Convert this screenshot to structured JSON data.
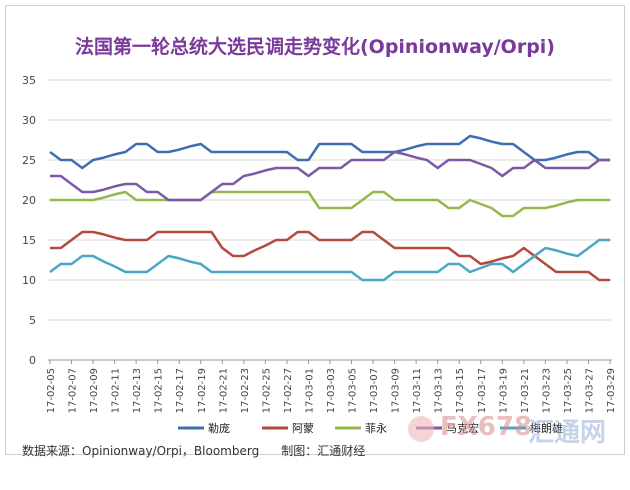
{
  "title": "法国第一轮总统大选民调走势变化(Opinionway/Orpi)",
  "footer": {
    "source": "数据来源：Opinionway/Orpi，Bloomberg",
    "maker": "制图：汇通财经"
  },
  "watermark": {
    "text1": "FX678",
    "text2": "汇通网"
  },
  "chart_data": {
    "type": "line",
    "title": "法国第一轮总统大选民调走势变化(Opinionway/Orpi)",
    "ylim": [
      0,
      35
    ],
    "yticks": [
      0,
      5,
      10,
      15,
      20,
      25,
      30,
      35
    ],
    "grid": true,
    "legend_position": "bottom",
    "x": [
      "17-02-05",
      "17-02-06",
      "17-02-07",
      "17-02-08",
      "17-02-09",
      "17-02-10",
      "17-02-11",
      "17-02-12",
      "17-02-13",
      "17-02-14",
      "17-02-15",
      "17-02-16",
      "17-02-17",
      "17-02-18",
      "17-02-19",
      "17-02-20",
      "17-02-21",
      "17-02-22",
      "17-02-23",
      "17-02-24",
      "17-02-25",
      "17-02-26",
      "17-02-27",
      "17-02-28",
      "17-03-01",
      "17-03-02",
      "17-03-03",
      "17-03-04",
      "17-03-05",
      "17-03-06",
      "17-03-07",
      "17-03-08",
      "17-03-09",
      "17-03-10",
      "17-03-11",
      "17-03-12",
      "17-03-13",
      "17-03-14",
      "17-03-15",
      "17-03-16",
      "17-03-17",
      "17-03-18",
      "17-03-19",
      "17-03-20",
      "17-03-21",
      "17-03-22",
      "17-03-23",
      "17-03-24",
      "17-03-25",
      "17-03-26",
      "17-03-27",
      "17-03-28",
      "17-03-29"
    ],
    "xtick_labels": [
      "17-02-05",
      "17-02-07",
      "17-02-09",
      "17-02-11",
      "17-02-13",
      "17-02-15",
      "17-02-17",
      "17-02-19",
      "17-02-21",
      "17-02-23",
      "17-02-25",
      "17-02-27",
      "17-03-01",
      "17-03-03",
      "17-03-05",
      "17-03-07",
      "17-03-09",
      "17-03-11",
      "17-03-13",
      "17-03-15",
      "17-03-17",
      "17-03-19",
      "17-03-21",
      "17-03-23",
      "17-03-25",
      "17-03-27",
      "17-03-29"
    ],
    "series": [
      {
        "name": "勒庞",
        "color": "#3d6fb0",
        "values": [
          26,
          25,
          25,
          24,
          25,
          25.3,
          25.7,
          26,
          27,
          27,
          26,
          26,
          26.3,
          26.7,
          27,
          26,
          26,
          26,
          26,
          26,
          26,
          26,
          26,
          25,
          25,
          27,
          27,
          27,
          27,
          26,
          26,
          26,
          26,
          26.3,
          26.7,
          27,
          27,
          27,
          27,
          28,
          27.7,
          27.3,
          27,
          27,
          26,
          25,
          25,
          25.3,
          25.7,
          26,
          26,
          25,
          25
        ]
      },
      {
        "name": "阿蒙",
        "color": "#b34a3c",
        "values": [
          14,
          14,
          15,
          16,
          16,
          15.7,
          15.3,
          15,
          15,
          15,
          16,
          16,
          16,
          16,
          16,
          16,
          14,
          13,
          13,
          13.7,
          14.3,
          15,
          15,
          16,
          16,
          15,
          15,
          15,
          15,
          16,
          16,
          15,
          14,
          14,
          14,
          14,
          14,
          14,
          13,
          13,
          12,
          12.3,
          12.7,
          13,
          14,
          13,
          12,
          11,
          11,
          11,
          11,
          10,
          10
        ]
      },
      {
        "name": "菲永",
        "color": "#95b84a",
        "values": [
          20,
          20,
          20,
          20,
          20,
          20.3,
          20.7,
          21,
          20,
          20,
          20,
          20,
          20,
          20,
          20,
          21,
          21,
          21,
          21,
          21,
          21,
          21,
          21,
          21,
          21,
          19,
          19,
          19,
          19,
          20,
          21,
          21,
          20,
          20,
          20,
          20,
          20,
          19,
          19,
          20,
          19.5,
          19,
          18,
          18,
          19,
          19,
          19,
          19.3,
          19.7,
          20,
          20,
          20,
          20
        ]
      },
      {
        "name": "马克宏",
        "color": "#7a5aa6",
        "values": [
          23,
          23,
          22,
          21,
          21,
          21.3,
          21.7,
          22,
          22,
          21,
          21,
          20,
          20,
          20,
          20,
          21,
          22,
          22,
          23,
          23.3,
          23.7,
          24,
          24,
          24,
          23,
          24,
          24,
          24,
          25,
          25,
          25,
          25,
          26,
          25.7,
          25.3,
          25,
          24,
          25,
          25,
          25,
          24.5,
          24,
          23,
          24,
          24,
          25,
          24,
          24,
          24,
          24,
          24,
          25,
          25
        ]
      },
      {
        "name": "梅朗雄",
        "color": "#4aa6c6",
        "values": [
          11,
          12,
          12,
          13,
          13,
          12.3,
          11.7,
          11,
          11,
          11,
          12,
          13,
          12.7,
          12.3,
          12,
          11,
          11,
          11,
          11,
          11,
          11,
          11,
          11,
          11,
          11,
          11,
          11,
          11,
          11,
          10,
          10,
          10,
          11,
          11,
          11,
          11,
          11,
          12,
          12,
          11,
          11.5,
          12,
          12,
          11,
          12,
          13,
          14,
          13.7,
          13.3,
          13,
          14,
          15,
          15
        ]
      }
    ]
  }
}
